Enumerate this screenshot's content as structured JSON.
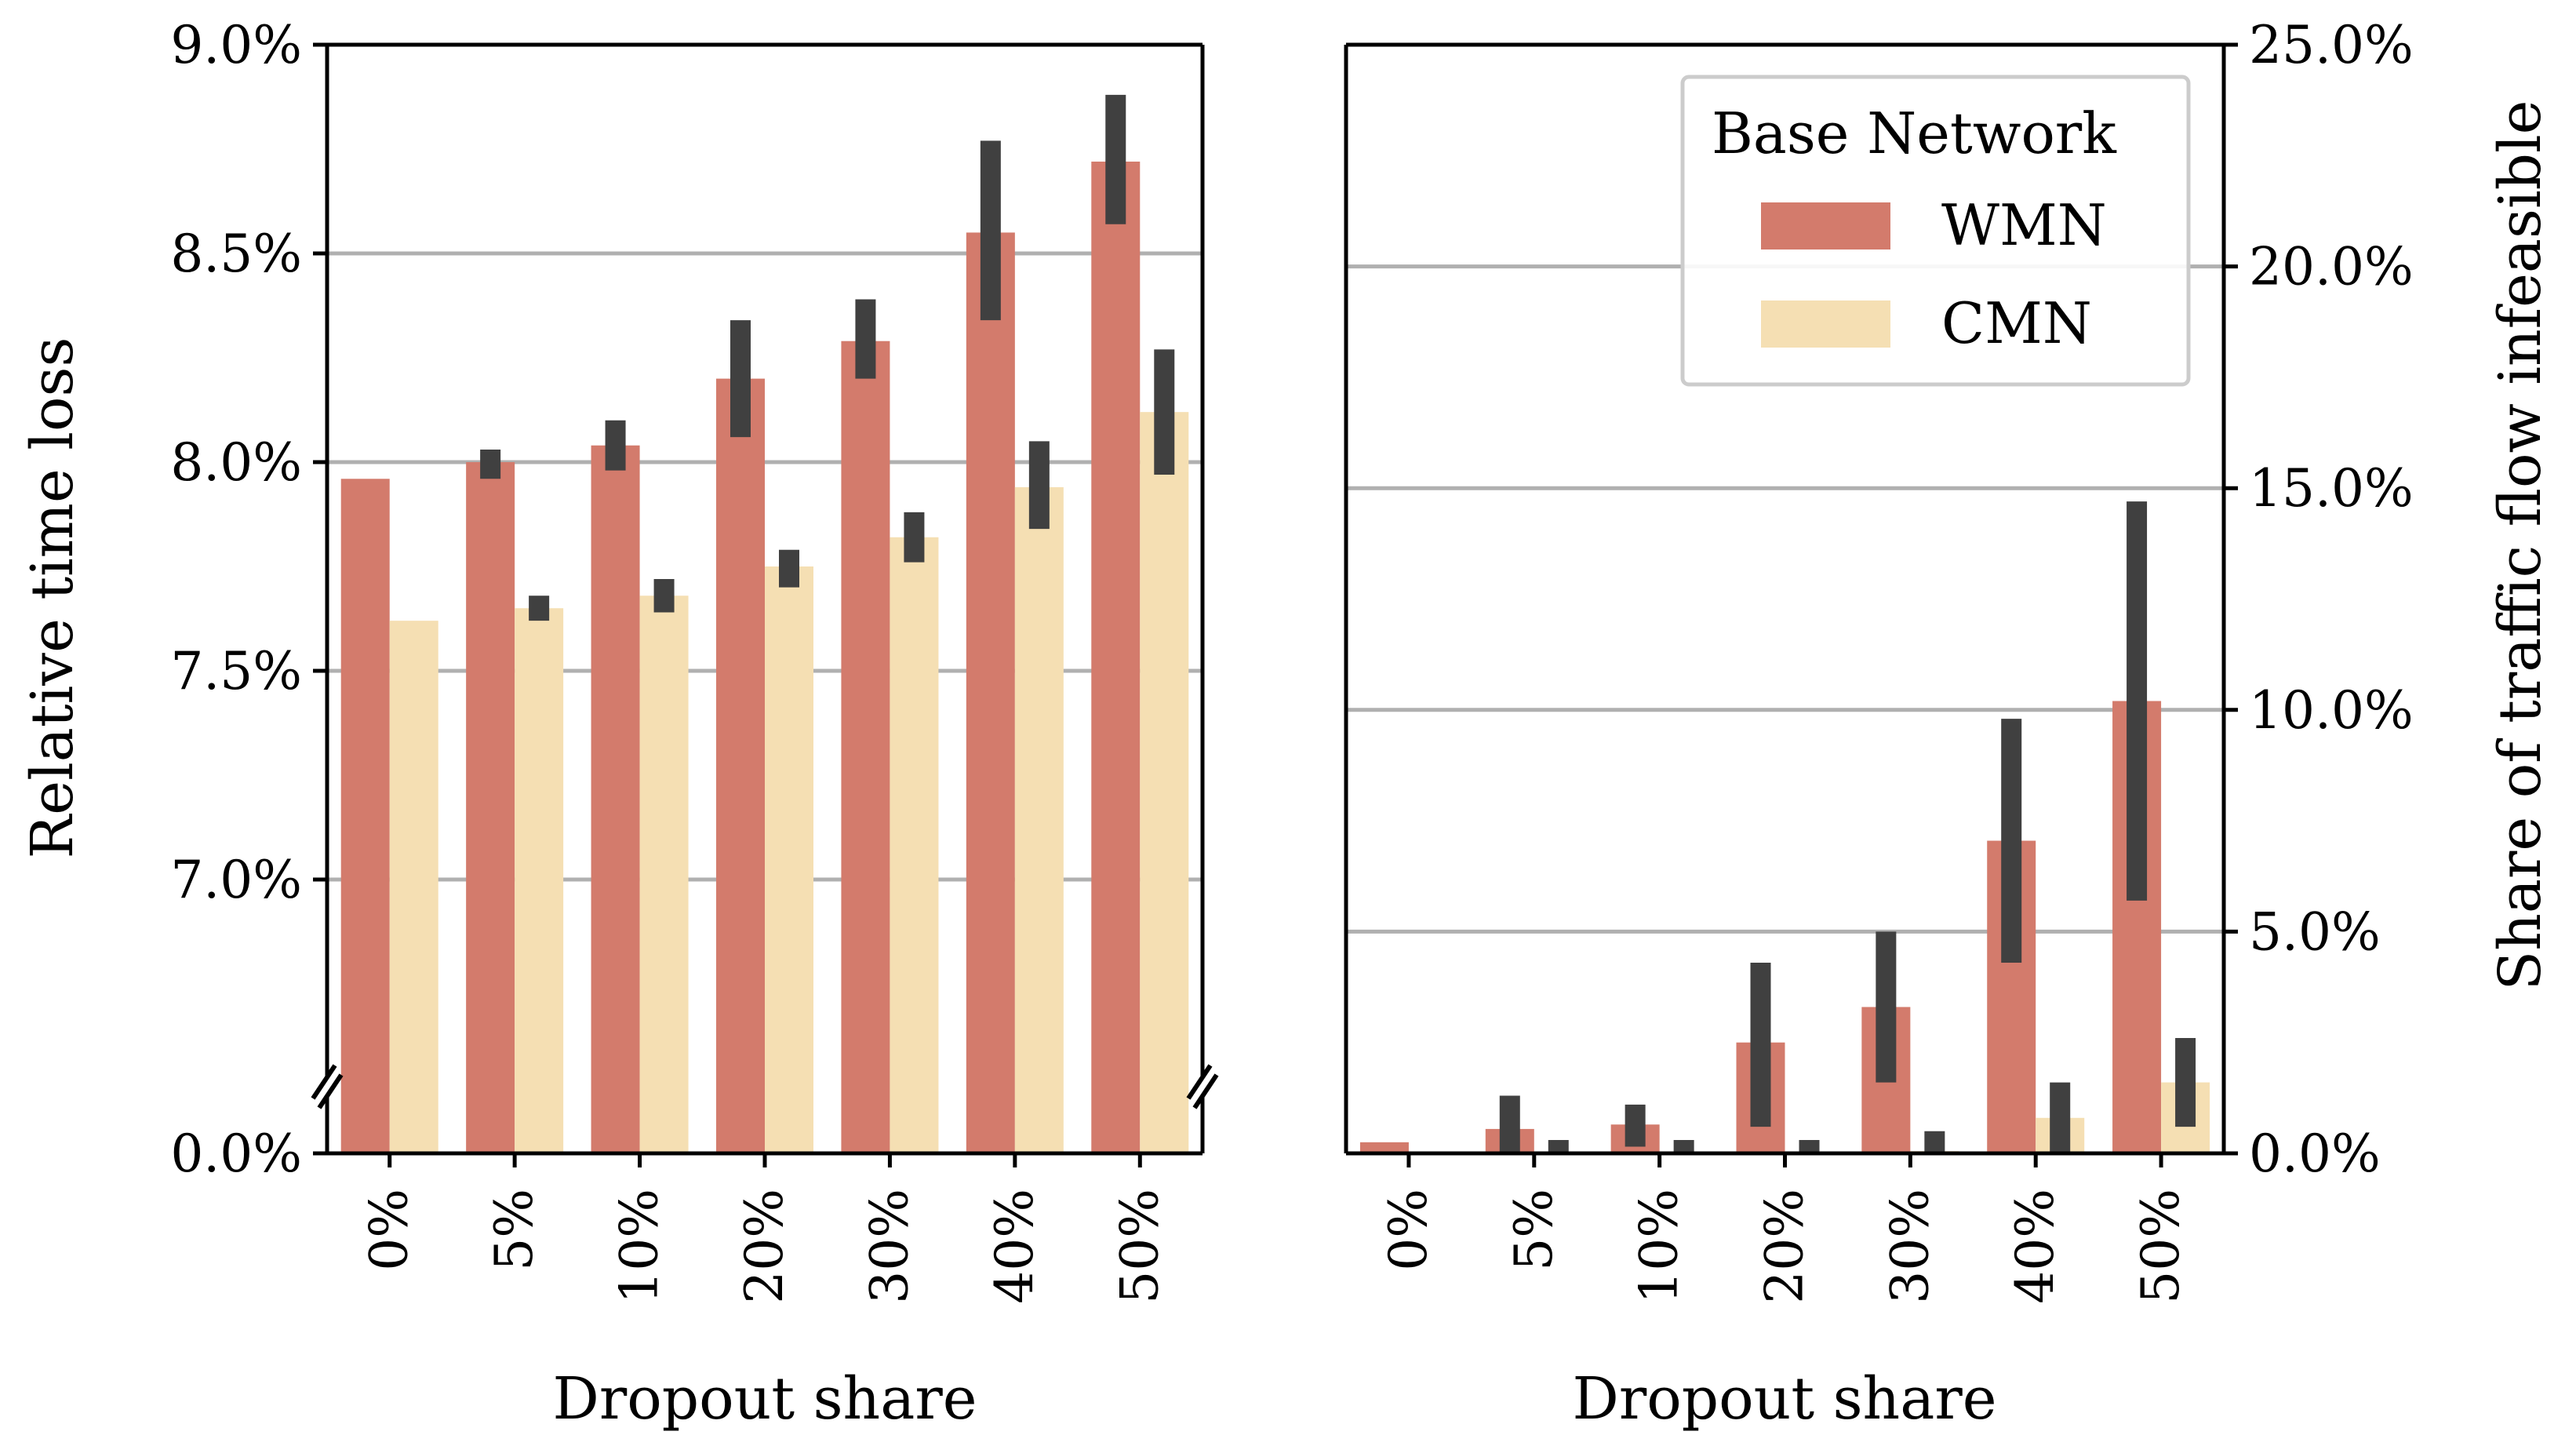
{
  "chart_data": [
    {
      "type": "bar",
      "title": "",
      "xlabel": "Dropout share",
      "ylabel": "Relative time loss",
      "categories": [
        "0%",
        "5%",
        "10%",
        "20%",
        "30%",
        "40%",
        "50%"
      ],
      "yticks": [
        "0.0%",
        "7.0%",
        "7.5%",
        "8.0%",
        "8.5%",
        "9.0%"
      ],
      "y_axis_break": "0.0% to 6.5% (broken axis)",
      "ylim": [
        6.5,
        9.0
      ],
      "grid": "y",
      "series": [
        {
          "name": "WMN",
          "color": "#d37b6c",
          "values": [
            7.96,
            8.0,
            8.04,
            8.2,
            8.29,
            8.55,
            8.72
          ],
          "ci_low": [
            null,
            7.96,
            7.98,
            8.06,
            8.2,
            8.34,
            8.57
          ],
          "ci_high": [
            null,
            8.03,
            8.1,
            8.34,
            8.39,
            8.77,
            8.88
          ]
        },
        {
          "name": "CMN",
          "color": "#f5dfb3",
          "values": [
            7.62,
            7.65,
            7.68,
            7.75,
            7.82,
            7.94,
            8.12
          ],
          "ci_low": [
            null,
            7.62,
            7.64,
            7.7,
            7.76,
            7.84,
            7.97
          ],
          "ci_high": [
            null,
            7.68,
            7.72,
            7.79,
            7.88,
            8.05,
            8.27
          ]
        }
      ]
    },
    {
      "type": "bar",
      "title": "",
      "xlabel": "Dropout share",
      "ylabel": "Share of traffic flow infeasible",
      "categories": [
        "0%",
        "5%",
        "10%",
        "20%",
        "30%",
        "40%",
        "50%"
      ],
      "yticks": [
        "0.0%",
        "5.0%",
        "10.0%",
        "15.0%",
        "20.0%",
        "25.0%"
      ],
      "ylim": [
        0,
        25
      ],
      "grid": "y",
      "y_axis_side": "right",
      "legend": {
        "title": "Base Network",
        "entries": [
          "WMN",
          "CMN"
        ],
        "location": "upper right"
      },
      "series": [
        {
          "name": "WMN",
          "color": "#d37b6c",
          "values": [
            0.25,
            0.55,
            0.65,
            2.5,
            3.3,
            7.05,
            10.2
          ],
          "ci_low": [
            null,
            0.0,
            0.15,
            0.6,
            1.6,
            4.3,
            5.7
          ],
          "ci_high": [
            null,
            1.3,
            1.1,
            4.3,
            5.0,
            9.8,
            14.7
          ]
        },
        {
          "name": "CMN",
          "color": "#f5dfb3",
          "values": [
            0.0,
            0.0,
            0.0,
            0.0,
            0.05,
            0.8,
            1.6
          ],
          "ci_low": [
            null,
            0.0,
            0.0,
            0.0,
            0.0,
            0.0,
            0.6
          ],
          "ci_high": [
            null,
            0.3,
            0.3,
            0.3,
            0.5,
            1.6,
            2.6
          ]
        }
      ]
    }
  ]
}
